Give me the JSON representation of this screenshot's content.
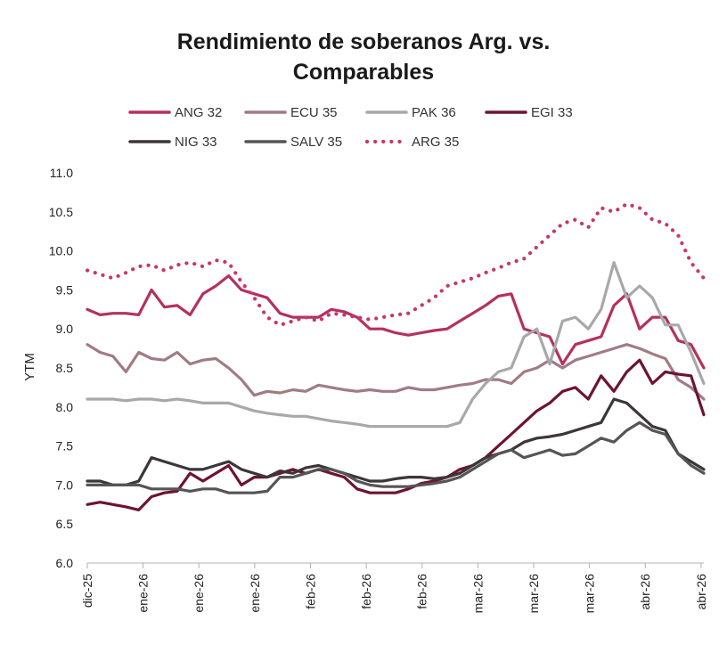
{
  "chart_data": {
    "type": "line",
    "title_line1": "Rendimiento de soberanos Arg. vs.",
    "title_line2": "Comparables",
    "ylabel": "YTM",
    "ylim": [
      6.0,
      11.0
    ],
    "yticks": [
      "6.0",
      "6.5",
      "7.0",
      "7.5",
      "8.0",
      "8.5",
      "9.0",
      "9.5",
      "10.0",
      "10.5",
      "11.0"
    ],
    "xticks": [
      "dic-25",
      "ene-26",
      "ene-26",
      "ene-26",
      "feb-26",
      "feb-26",
      "feb-26",
      "mar-26",
      "mar-26",
      "mar-26",
      "abr-26",
      "abr-26"
    ],
    "n_points": 49,
    "legend_position": "top",
    "series": [
      {
        "name": "ANG 32",
        "color": "#b5305f",
        "style": "solid",
        "values": [
          9.25,
          9.18,
          9.2,
          9.2,
          9.18,
          9.5,
          9.28,
          9.3,
          9.18,
          9.45,
          9.55,
          9.68,
          9.5,
          9.45,
          9.4,
          9.2,
          9.15,
          9.15,
          9.15,
          9.25,
          9.22,
          9.15,
          9.0,
          9.0,
          8.95,
          8.92,
          8.95,
          8.98,
          9.0,
          9.1,
          9.2,
          9.3,
          9.42,
          9.45,
          9.0,
          8.95,
          8.9,
          8.55,
          8.8,
          8.85,
          8.9,
          9.3,
          9.45,
          9.0,
          9.15,
          9.15,
          8.85,
          8.8,
          8.5
        ]
      },
      {
        "name": "ECU 35",
        "color": "#a17b83",
        "style": "solid",
        "values": [
          8.8,
          8.7,
          8.65,
          8.45,
          8.7,
          8.62,
          8.6,
          8.7,
          8.55,
          8.6,
          8.62,
          8.5,
          8.35,
          8.15,
          8.2,
          8.18,
          8.22,
          8.2,
          8.28,
          8.25,
          8.22,
          8.2,
          8.22,
          8.2,
          8.2,
          8.25,
          8.22,
          8.22,
          8.25,
          8.28,
          8.3,
          8.35,
          8.35,
          8.3,
          8.45,
          8.5,
          8.6,
          8.5,
          8.6,
          8.65,
          8.7,
          8.75,
          8.8,
          8.75,
          8.68,
          8.62,
          8.35,
          8.25,
          8.1
        ]
      },
      {
        "name": "PAK 36",
        "color": "#a8a8a8",
        "style": "solid",
        "values": [
          8.1,
          8.1,
          8.1,
          8.08,
          8.1,
          8.1,
          8.08,
          8.1,
          8.08,
          8.05,
          8.05,
          8.05,
          8.0,
          7.95,
          7.92,
          7.9,
          7.88,
          7.88,
          7.85,
          7.82,
          7.8,
          7.78,
          7.75,
          7.75,
          7.75,
          7.75,
          7.75,
          7.75,
          7.75,
          7.8,
          8.1,
          8.3,
          8.45,
          8.5,
          8.9,
          9.0,
          8.55,
          9.1,
          9.15,
          9.0,
          9.25,
          9.85,
          9.4,
          9.55,
          9.4,
          9.05,
          9.05,
          8.7,
          8.3
        ]
      },
      {
        "name": "EGI 33",
        "color": "#6d1432",
        "style": "solid",
        "values": [
          6.75,
          6.78,
          6.75,
          6.72,
          6.68,
          6.85,
          6.9,
          6.92,
          7.15,
          7.05,
          7.15,
          7.25,
          7.0,
          7.1,
          7.1,
          7.15,
          7.2,
          7.15,
          7.2,
          7.15,
          7.1,
          6.95,
          6.9,
          6.9,
          6.9,
          6.95,
          7.02,
          7.05,
          7.1,
          7.2,
          7.25,
          7.35,
          7.5,
          7.65,
          7.8,
          7.95,
          8.05,
          8.2,
          8.25,
          8.1,
          8.4,
          8.2,
          8.45,
          8.6,
          8.3,
          8.45,
          8.42,
          8.4,
          7.9
        ]
      },
      {
        "name": "NIG 33",
        "color": "#3d3638",
        "style": "solid",
        "values": [
          7.05,
          7.05,
          7.0,
          7.0,
          7.05,
          7.35,
          7.3,
          7.25,
          7.2,
          7.2,
          7.25,
          7.3,
          7.2,
          7.15,
          7.1,
          7.18,
          7.15,
          7.22,
          7.25,
          7.2,
          7.15,
          7.1,
          7.05,
          7.05,
          7.08,
          7.1,
          7.1,
          7.08,
          7.1,
          7.15,
          7.25,
          7.35,
          7.4,
          7.45,
          7.55,
          7.6,
          7.62,
          7.65,
          7.7,
          7.75,
          7.8,
          8.1,
          8.05,
          7.9,
          7.75,
          7.7,
          7.4,
          7.3,
          7.2
        ]
      },
      {
        "name": "SALV 35",
        "color": "#555555",
        "style": "solid",
        "values": [
          7.0,
          7.0,
          7.0,
          7.0,
          7.0,
          6.95,
          6.95,
          6.95,
          6.92,
          6.95,
          6.95,
          6.9,
          6.9,
          6.9,
          6.92,
          7.1,
          7.1,
          7.15,
          7.2,
          7.2,
          7.15,
          7.05,
          7.0,
          6.98,
          6.98,
          6.98,
          7.0,
          7.02,
          7.05,
          7.1,
          7.2,
          7.3,
          7.4,
          7.45,
          7.35,
          7.4,
          7.45,
          7.38,
          7.4,
          7.5,
          7.6,
          7.55,
          7.7,
          7.8,
          7.7,
          7.65,
          7.4,
          7.25,
          7.15
        ]
      },
      {
        "name": "ARG 35",
        "color": "#c8356a",
        "style": "dotted",
        "values": [
          9.75,
          9.7,
          9.65,
          9.72,
          9.8,
          9.82,
          9.75,
          9.82,
          9.85,
          9.8,
          9.88,
          9.85,
          9.6,
          9.4,
          9.15,
          9.05,
          9.1,
          9.15,
          9.1,
          9.2,
          9.18,
          9.15,
          9.12,
          9.15,
          9.18,
          9.2,
          9.3,
          9.4,
          9.55,
          9.6,
          9.65,
          9.72,
          9.78,
          9.85,
          9.9,
          10.05,
          10.2,
          10.35,
          10.4,
          10.3,
          10.55,
          10.5,
          10.6,
          10.55,
          10.4,
          10.35,
          10.2,
          9.85,
          9.65
        ]
      }
    ]
  }
}
